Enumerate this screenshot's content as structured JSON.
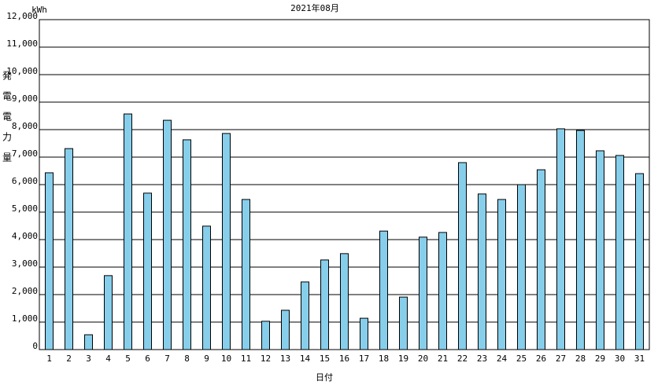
{
  "chart_data": {
    "type": "bar",
    "title": "2021年08月",
    "y_unit": "kWh",
    "y_label": "発電電力量",
    "x_label": "日付",
    "categories": [
      "1",
      "2",
      "3",
      "4",
      "5",
      "6",
      "7",
      "8",
      "9",
      "10",
      "11",
      "12",
      "13",
      "14",
      "15",
      "16",
      "17",
      "18",
      "19",
      "20",
      "21",
      "22",
      "23",
      "24",
      "25",
      "26",
      "27",
      "28",
      "29",
      "30",
      "31"
    ],
    "values": [
      6430,
      7310,
      540,
      2690,
      8570,
      5690,
      8340,
      7630,
      4490,
      7860,
      5460,
      1030,
      1430,
      2460,
      3260,
      3490,
      1140,
      4310,
      1910,
      4090,
      4260,
      6800,
      5660,
      5460,
      6000,
      6540,
      8030,
      7970,
      7230,
      7060,
      6400
    ],
    "color": "#87ceeb",
    "ylim": [
      0,
      12000
    ],
    "yticks": [
      0,
      {
        "value": 1000,
        "label": "1,000"
      },
      {
        "value": 2000,
        "label": "2,000"
      },
      {
        "value": 3000,
        "label": "3,000"
      },
      {
        "value": 4000,
        "label": "4,000"
      },
      {
        "value": 5000,
        "label": "5,000"
      },
      {
        "value": 6000,
        "label": "6,000"
      },
      {
        "value": 7000,
        "label": "7,000"
      },
      {
        "value": 8000,
        "label": "8,000"
      },
      {
        "value": 9000,
        "label": "9,000"
      },
      {
        "value": 10000,
        "label": "10,000"
      },
      {
        "value": 11000,
        "label": "11,000"
      },
      {
        "value": 12000,
        "label": "12,000"
      }
    ],
    "grid": true
  }
}
